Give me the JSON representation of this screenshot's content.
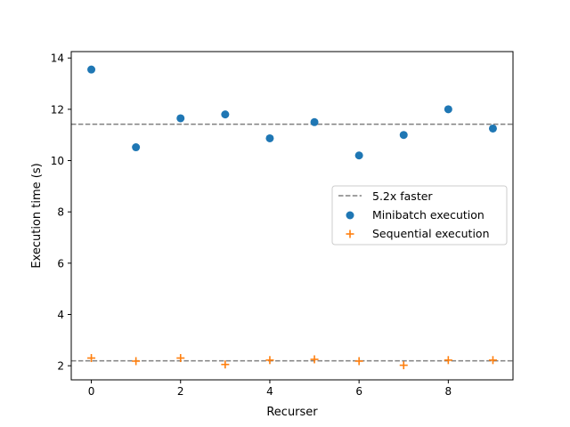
{
  "chart_data": {
    "type": "scatter",
    "title": "",
    "xlabel": "Recurser",
    "ylabel": "Execution time (s)",
    "xlim": [
      -0.45,
      9.45
    ],
    "ylim": [
      1.45,
      14.25
    ],
    "xticks": [
      0,
      2,
      4,
      6,
      8
    ],
    "yticks": [
      2,
      4,
      6,
      8,
      10,
      12,
      14
    ],
    "grid": false,
    "legend_position": "center-right",
    "x": [
      0,
      1,
      2,
      3,
      4,
      5,
      6,
      7,
      8,
      9
    ],
    "series": [
      {
        "name": "Minibatch execution",
        "marker": "circle",
        "color": "#1f77b4",
        "values": [
          13.55,
          10.52,
          11.65,
          11.8,
          10.87,
          11.5,
          10.2,
          11.0,
          12.0,
          11.25
        ]
      },
      {
        "name": "Sequential execution",
        "marker": "plus",
        "color": "#ff7f0e",
        "values": [
          2.3,
          2.18,
          2.3,
          2.05,
          2.22,
          2.25,
          2.18,
          2.02,
          2.22,
          2.22
        ]
      }
    ],
    "reference_lines": [
      {
        "name": "5.2x faster",
        "y": 11.42,
        "style": "dashed",
        "color": "#808080"
      },
      {
        "name": "",
        "y": 2.19,
        "style": "dashed",
        "color": "#808080"
      }
    ]
  }
}
